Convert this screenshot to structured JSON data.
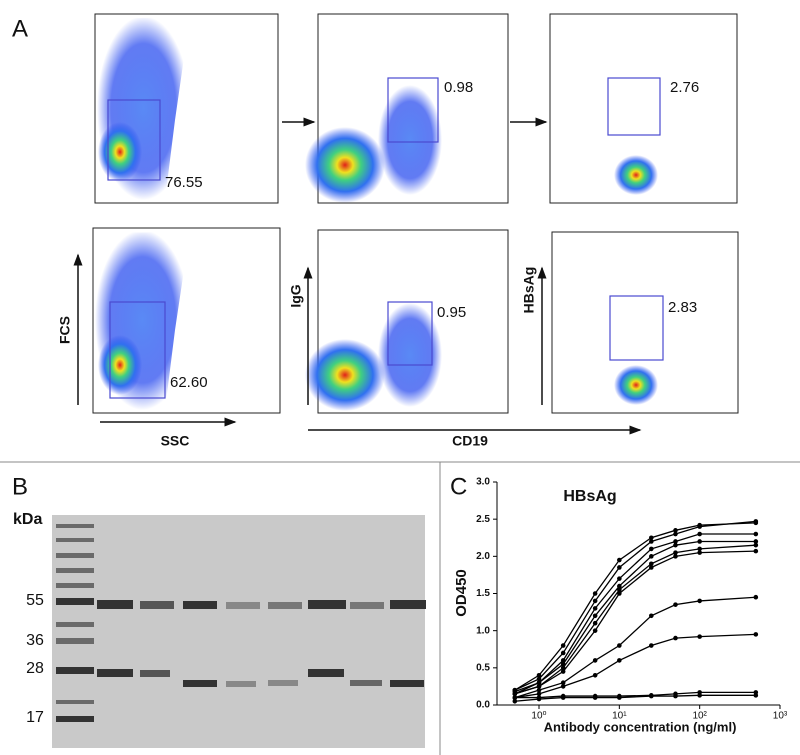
{
  "panels": {
    "a": {
      "label": "A",
      "gates": [
        "76.55",
        "0.98",
        "2.76",
        "62.60",
        "0.95",
        "2.83"
      ],
      "axes": {
        "fcs": "FCS",
        "ssc": "SSC",
        "igg": "IgG",
        "cd19": "CD19",
        "hbsag": "HBsAg"
      }
    },
    "b": {
      "label": "B",
      "unit": "kDa",
      "markers": [
        "55",
        "36",
        "28",
        "17"
      ]
    },
    "c": {
      "label": "C"
    }
  },
  "chart_data": {
    "type": "line",
    "title": "HBsAg",
    "y_label": "OD450",
    "x_label": "Antibody concentration (ng/ml)",
    "x_scale": "log",
    "x": [
      0.5,
      1,
      2,
      5,
      10,
      25,
      50,
      100,
      500
    ],
    "xlim": [
      0.3,
      1000
    ],
    "xticks": [
      {
        "value": 1,
        "label": "10⁰"
      },
      {
        "value": 10,
        "label": "10¹"
      },
      {
        "value": 100,
        "label": "10²"
      },
      {
        "value": 1000,
        "label": "10³"
      }
    ],
    "ylim": [
      0,
      3
    ],
    "yticks": [
      {
        "value": 0,
        "label": "0.0"
      },
      0.5,
      {
        "value": 1,
        "label": "1.0"
      },
      1.5,
      {
        "value": 2,
        "label": "2.0"
      },
      2.5,
      {
        "value": 3,
        "label": "3.0"
      }
    ],
    "color": "#000000",
    "series": [
      {
        "values": [
          0.2,
          0.4,
          0.8,
          1.5,
          1.95,
          2.25,
          2.35,
          2.42,
          2.45
        ]
      },
      {
        "values": [
          0.2,
          0.35,
          0.7,
          1.4,
          1.85,
          2.2,
          2.3,
          2.4,
          2.47
        ]
      },
      {
        "values": [
          0.18,
          0.3,
          0.6,
          1.3,
          1.7,
          2.1,
          2.2,
          2.3,
          2.3
        ]
      },
      {
        "values": [
          0.15,
          0.3,
          0.55,
          1.2,
          1.6,
          2.0,
          2.15,
          2.2,
          2.2
        ]
      },
      {
        "values": [
          0.15,
          0.25,
          0.5,
          1.1,
          1.55,
          1.9,
          2.05,
          2.1,
          2.15
        ]
      },
      {
        "values": [
          0.15,
          0.25,
          0.45,
          1.0,
          1.5,
          1.85,
          2.0,
          2.05,
          2.07
        ]
      },
      {
        "values": [
          0.1,
          0.2,
          0.3,
          0.6,
          0.8,
          1.2,
          1.35,
          1.4,
          1.45
        ]
      },
      {
        "values": [
          0.1,
          0.15,
          0.25,
          0.4,
          0.6,
          0.8,
          0.9,
          0.92,
          0.95
        ]
      },
      {
        "values": [
          0.1,
          0.1,
          0.12,
          0.12,
          0.12,
          0.13,
          0.15,
          0.17,
          0.17
        ]
      },
      {
        "values": [
          0.05,
          0.08,
          0.1,
          0.1,
          0.1,
          0.12,
          0.12,
          0.13,
          0.13
        ]
      }
    ]
  }
}
